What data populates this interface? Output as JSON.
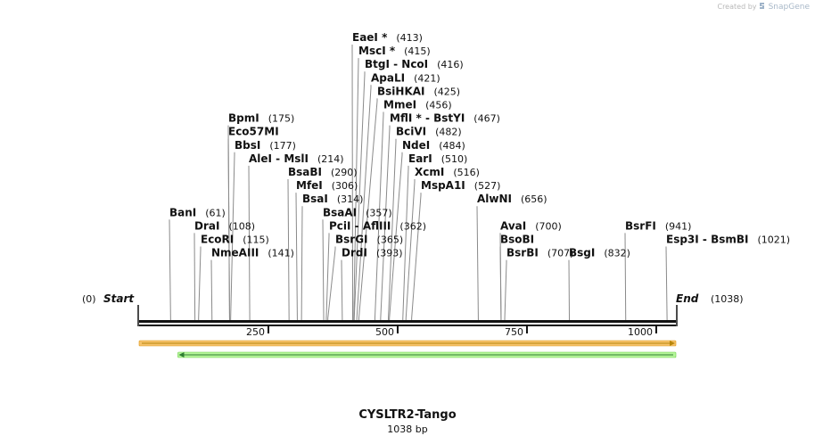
{
  "watermark": {
    "created_by": "Created by",
    "brand": "SnapGene"
  },
  "sequence": {
    "name": "CYSLTR2-Tango",
    "length_label": "1038 bp",
    "length": 1038
  },
  "termini": {
    "start": {
      "label": "Start",
      "position": "(0)"
    },
    "end": {
      "label": "End",
      "position": "(1038)"
    }
  },
  "scale": [
    {
      "value": 250,
      "label": "250"
    },
    {
      "value": 500,
      "label": "500"
    },
    {
      "value": 750,
      "label": "750"
    },
    {
      "value": 1000,
      "label": "1000"
    }
  ],
  "features": [
    {
      "name": "orange-forward-feature",
      "start": 0,
      "end": 1038,
      "direction": "forward",
      "color": "#f5c26b",
      "stroke": "#e09a1a",
      "arrow": "#b8860b"
    },
    {
      "name": "green-reverse-feature",
      "start": 75,
      "end": 1038,
      "direction": "reverse",
      "color": "#b5f59a",
      "stroke": "#6ccf46",
      "arrow": "#2e7d32"
    }
  ],
  "enzymes": [
    {
      "label": "BanI",
      "position": 61,
      "position_label": "(61)",
      "row": 13,
      "indent": 0,
      "tag": ""
    },
    {
      "label": "DraI",
      "position": 108,
      "position_label": "(108)",
      "row": 14,
      "indent": 0,
      "tag": ""
    },
    {
      "label": "EcoRI",
      "position": 115,
      "position_label": "(115)",
      "row": 15,
      "indent": 0,
      "tag": ""
    },
    {
      "label": "NmeAIII",
      "position": 141,
      "position_label": "(141)",
      "row": 16,
      "indent": 0,
      "tag": ""
    },
    {
      "label": "BpmI",
      "position": 175,
      "position_label": "(175)",
      "row": 6,
      "indent": 0,
      "tag": ""
    },
    {
      "label": "Eco57MI",
      "position": 175,
      "position_label": "",
      "row": 7,
      "indent": 0,
      "tag": ""
    },
    {
      "label": "BbsI",
      "position": 177,
      "position_label": "(177)",
      "row": 8,
      "indent": 0,
      "tag": ""
    },
    {
      "label": "AleI - MslI",
      "position": 214,
      "position_label": "(214)",
      "row": 9,
      "indent": 0,
      "tag": ""
    },
    {
      "label": "BsaBI",
      "position": 290,
      "position_label": "(290)",
      "row": 10,
      "indent": 0,
      "tag": ""
    },
    {
      "label": "MfeI",
      "position": 306,
      "position_label": "(306)",
      "row": 11,
      "indent": 0,
      "tag": ""
    },
    {
      "label": "BsaI",
      "position": 314,
      "position_label": "(314)",
      "row": 12,
      "indent": 0,
      "tag": ""
    },
    {
      "label": "BsaAI",
      "position": 357,
      "position_label": "(357)",
      "row": 13,
      "indent": 0,
      "tag": ""
    },
    {
      "label": "PciI - AflIII",
      "position": 362,
      "position_label": "(362)",
      "row": 14,
      "indent": 0,
      "tag": ""
    },
    {
      "label": "BsrGI",
      "position": 365,
      "position_label": "(365)",
      "row": 15,
      "indent": 0,
      "tag": ""
    },
    {
      "label": "DrdI",
      "position": 393,
      "position_label": "(393)",
      "row": 16,
      "indent": 0,
      "tag": ""
    },
    {
      "label": "EaeI",
      "position": 413,
      "position_label": "(413)",
      "row": 0,
      "indent": 0,
      "tag": "*"
    },
    {
      "label": "MscI",
      "position": 415,
      "position_label": "(415)",
      "row": 1,
      "indent": 0,
      "tag": "*"
    },
    {
      "label": "BtgI - NcoI",
      "position": 416,
      "position_label": "(416)",
      "row": 2,
      "indent": 0,
      "tag": ""
    },
    {
      "label": "ApaLI",
      "position": 421,
      "position_label": "(421)",
      "row": 3,
      "indent": 0,
      "tag": ""
    },
    {
      "label": "BsiHKAI",
      "position": 425,
      "position_label": "(425)",
      "row": 4,
      "indent": 0,
      "tag": ""
    },
    {
      "label": "MmeI",
      "position": 456,
      "position_label": "(456)",
      "row": 5,
      "indent": 0,
      "tag": ""
    },
    {
      "label": "MflI",
      "position": 467,
      "position_label": "(467)",
      "row": 6,
      "indent": 0,
      "tag": "*",
      "suffix": " - BstYI"
    },
    {
      "label": "BciVI",
      "position": 482,
      "position_label": "(482)",
      "row": 7,
      "indent": 0,
      "tag": ""
    },
    {
      "label": "NdeI",
      "position": 484,
      "position_label": "(484)",
      "row": 8,
      "indent": 0,
      "tag": ""
    },
    {
      "label": "EarI",
      "position": 510,
      "position_label": "(510)",
      "row": 9,
      "indent": 0,
      "tag": ""
    },
    {
      "label": "XcmI",
      "position": 516,
      "position_label": "(516)",
      "row": 10,
      "indent": 0,
      "tag": ""
    },
    {
      "label": "MspA1I",
      "position": 527,
      "position_label": "(527)",
      "row": 11,
      "indent": 0,
      "tag": ""
    },
    {
      "label": "AlwNI",
      "position": 656,
      "position_label": "(656)",
      "row": 12,
      "indent": 0,
      "tag": ""
    },
    {
      "label": "AvaI",
      "position": 700,
      "position_label": "(700)",
      "row": 14,
      "indent": 0,
      "tag": ""
    },
    {
      "label": "BsoBI",
      "position": 700,
      "position_label": "",
      "row": 15,
      "indent": 0,
      "tag": ""
    },
    {
      "label": "BsrBI",
      "position": 707,
      "position_label": "(707)",
      "row": 16,
      "indent": 0,
      "tag": ""
    },
    {
      "label": "BsgI",
      "position": 832,
      "position_label": "(832)",
      "row": 16,
      "indent": 0,
      "tag": ""
    },
    {
      "label": "BsrFI",
      "position": 941,
      "position_label": "(941)",
      "row": 14,
      "indent": 0,
      "tag": ""
    },
    {
      "label": "Esp3I - BsmBI",
      "position": 1021,
      "position_label": "(1021)",
      "row": 15,
      "indent": 0,
      "tag": ""
    }
  ]
}
